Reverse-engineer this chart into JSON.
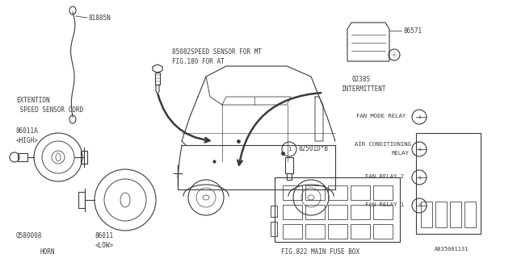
{
  "bg_color": "#ffffff",
  "line_color": "#3a3a3a",
  "diagram_id": "A835001131",
  "relay_labels": [
    "FAN MODE RELAY",
    "AIR CONDITIONING\nRELAY",
    "FAN RELAY 2",
    "FAN RELAY 1"
  ]
}
